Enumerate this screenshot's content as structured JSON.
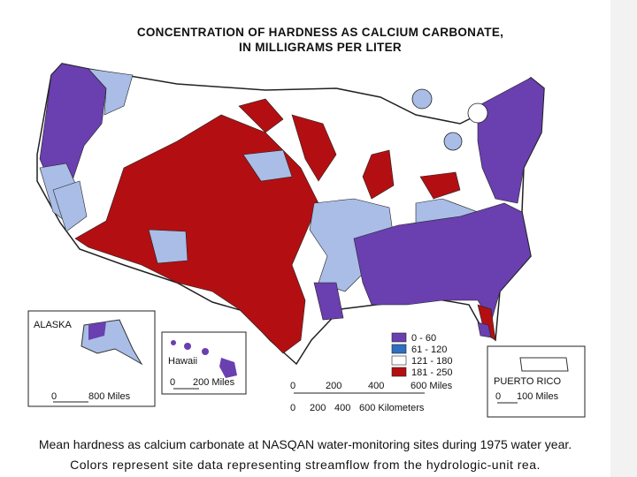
{
  "map": {
    "title": [
      "CONCENTRATION OF HARDNESS AS CALCIUM CARBONATE,",
      "IN MILLIGRAMS PER LITER"
    ],
    "legend": [
      {
        "label": "0 - 60",
        "color": "#6a3fb0"
      },
      {
        "label": "61 - 120",
        "color": "#2f6fc0"
      },
      {
        "label": "121 - 180",
        "color": "#ffffff"
      },
      {
        "label": "181 - 250",
        "color": "#b30f12"
      }
    ],
    "light_color": "#a9bde6",
    "insets": {
      "alaska": "ALASKA",
      "hawaii": "Hawaii",
      "puerto_rico": "PUERTO RICO"
    },
    "scales": {
      "alaska": [
        "0",
        "800 Miles"
      ],
      "hawaii": [
        "0",
        "200 Miles"
      ],
      "puerto_rico": [
        "0",
        "100 Miles"
      ],
      "main_miles": [
        "0",
        "200",
        "400",
        "600 Miles"
      ],
      "main_km": [
        "0",
        "200",
        "400",
        "600 Kilometers"
      ]
    },
    "caption": [
      "Mean hardness as calcium carbonate at NASQAN water-monitoring sites during 1975 water year.",
      "Colors represent site data representing streamflow from the hydrologic-unit rea."
    ]
  }
}
